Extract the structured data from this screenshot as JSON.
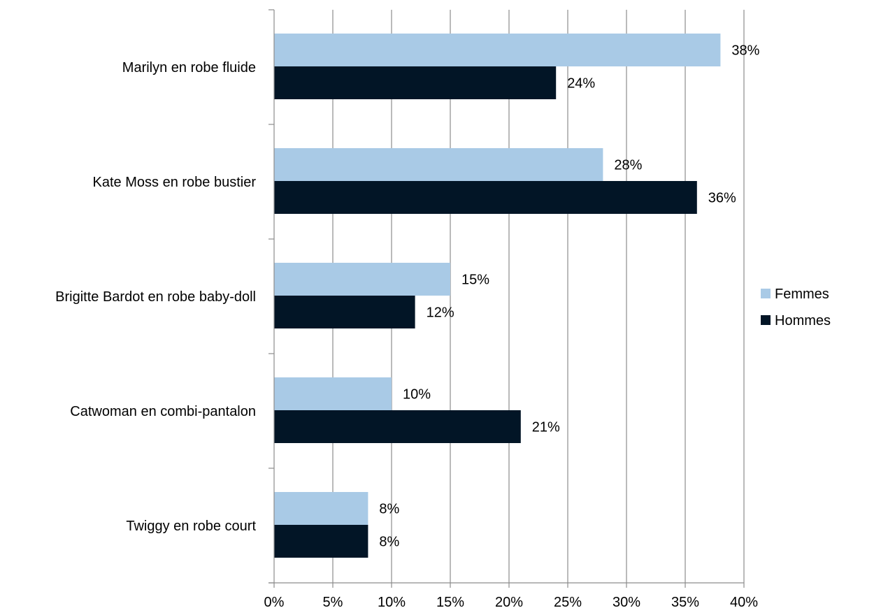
{
  "chart_data": {
    "type": "bar",
    "orientation": "horizontal",
    "categories": [
      "Marilyn en robe fluide",
      "Kate Moss en robe bustier",
      "Brigitte Bardot en robe baby-doll",
      "Catwoman en combi-pantalon",
      "Twiggy en robe court"
    ],
    "series": [
      {
        "name": "Femmes",
        "color": "#a9cae6",
        "values": [
          38,
          28,
          15,
          10,
          8
        ],
        "labels": [
          "38%",
          "28%",
          "15%",
          "10%",
          "8%"
        ]
      },
      {
        "name": "Hommes",
        "color": "#021526",
        "values": [
          24,
          36,
          12,
          21,
          8
        ],
        "labels": [
          "24%",
          "36%",
          "12%",
          "21%",
          "8%"
        ]
      }
    ],
    "xlim": [
      0,
      40
    ],
    "xticks": [
      0,
      5,
      10,
      15,
      20,
      25,
      30,
      35,
      40
    ],
    "xtick_labels": [
      "0%",
      "5%",
      "10%",
      "15%",
      "20%",
      "25%",
      "30%",
      "35%",
      "40%"
    ],
    "grid": true,
    "legend": "right",
    "title": "",
    "xlabel": "",
    "ylabel": ""
  }
}
